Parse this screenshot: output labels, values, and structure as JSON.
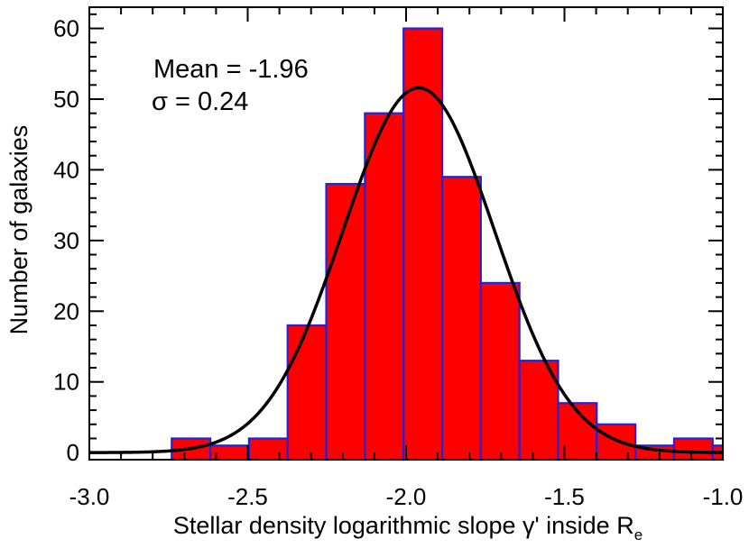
{
  "chart_data": {
    "type": "bar",
    "title": "",
    "xlabel_main": "Stellar density logarithmic slope γ' inside R",
    "xlabel_sub": "e",
    "ylabel": "Number of galaxies",
    "xlim": [
      -3.0,
      -1.0
    ],
    "ylim": [
      -1,
      63
    ],
    "x_ticks": [
      -3.0,
      -2.5,
      -2.0,
      -1.5,
      -1.0
    ],
    "x_tick_labels": [
      "-3.0",
      "-2.5",
      "-2.0",
      "-1.5",
      "-1.0"
    ],
    "y_ticks": [
      0,
      10,
      20,
      30,
      40,
      50,
      60
    ],
    "y_tick_labels": [
      "0",
      "10",
      "20",
      "30",
      "40",
      "50",
      "60"
    ],
    "bin_width": 0.122,
    "bins": [
      {
        "left": -2.74,
        "value": 2
      },
      {
        "left": -2.618,
        "value": 1
      },
      {
        "left": -2.496,
        "value": 2
      },
      {
        "left": -2.374,
        "value": 18
      },
      {
        "left": -2.252,
        "value": 38
      },
      {
        "left": -2.13,
        "value": 48
      },
      {
        "left": -2.008,
        "value": 60
      },
      {
        "left": -1.886,
        "value": 39
      },
      {
        "left": -1.764,
        "value": 24
      },
      {
        "left": -1.642,
        "value": 13
      },
      {
        "left": -1.52,
        "value": 7
      },
      {
        "left": -1.398,
        "value": 4
      },
      {
        "left": -1.276,
        "value": 1
      },
      {
        "left": -1.154,
        "value": 2
      },
      {
        "left": -1.032,
        "value": 1
      }
    ],
    "fit": {
      "type": "gaussian",
      "mean": -1.96,
      "sigma": 0.24,
      "peak": 51.6
    },
    "annotations": {
      "mean_label": "Mean = -1.96",
      "sigma_label": "σ = 0.24"
    },
    "colors": {
      "bar_fill": "#ff0000",
      "bar_edge": "#2222dd",
      "curve": "#000000",
      "axis": "#000000"
    },
    "grid": false
  }
}
